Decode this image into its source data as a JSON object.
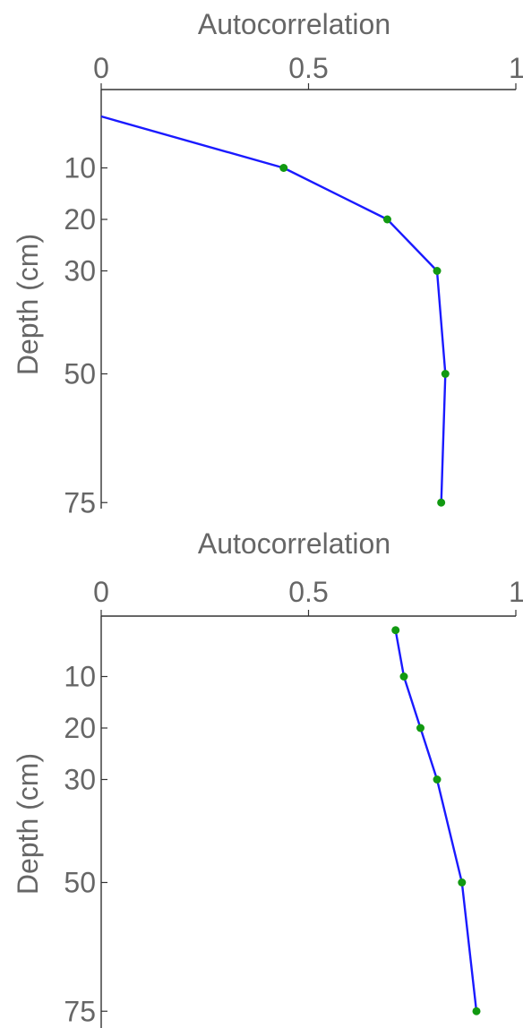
{
  "chart_data": [
    {
      "type": "line",
      "xlabel": "Autocorrelation",
      "ylabel": "Depth (cm)",
      "xlim": [
        0,
        1
      ],
      "ylim": [
        0,
        77
      ],
      "y_reversed": true,
      "x_axis_position": "top",
      "x_ticks": [
        0,
        0.5,
        1
      ],
      "x_tick_labels": [
        "0",
        "0.5",
        "1"
      ],
      "y_ticks": [
        10,
        20,
        30,
        50,
        75
      ],
      "y_tick_labels": [
        "10",
        "20",
        "30",
        "50",
        "75"
      ],
      "grid": false,
      "line_color": "#1a1aff",
      "marker_color": "#119911",
      "points": [
        {
          "x": 0.0,
          "y": 0,
          "marker": false
        },
        {
          "x": 0.44,
          "y": 10,
          "marker": true
        },
        {
          "x": 0.69,
          "y": 20,
          "marker": true
        },
        {
          "x": 0.81,
          "y": 30,
          "marker": true
        },
        {
          "x": 0.83,
          "y": 50,
          "marker": true
        },
        {
          "x": 0.82,
          "y": 75,
          "marker": true
        }
      ]
    },
    {
      "type": "line",
      "xlabel": "Autocorrelation",
      "ylabel": "Depth (cm)",
      "xlim": [
        0,
        1
      ],
      "ylim": [
        0,
        77
      ],
      "y_reversed": true,
      "x_axis_position": "top",
      "x_ticks": [
        0,
        0.5,
        1
      ],
      "x_tick_labels": [
        "0",
        "0.5",
        "1"
      ],
      "y_ticks": [
        10,
        20,
        30,
        50,
        75
      ],
      "y_tick_labels": [
        "10",
        "20",
        "30",
        "50",
        "75"
      ],
      "grid": false,
      "line_color": "#1a1aff",
      "marker_color": "#119911",
      "points": [
        {
          "x": 0.71,
          "y": 1,
          "marker": true
        },
        {
          "x": 0.73,
          "y": 10,
          "marker": true
        },
        {
          "x": 0.77,
          "y": 20,
          "marker": true
        },
        {
          "x": 0.81,
          "y": 30,
          "marker": true
        },
        {
          "x": 0.87,
          "y": 50,
          "marker": true
        },
        {
          "x": 0.905,
          "y": 75,
          "marker": true
        }
      ]
    }
  ]
}
